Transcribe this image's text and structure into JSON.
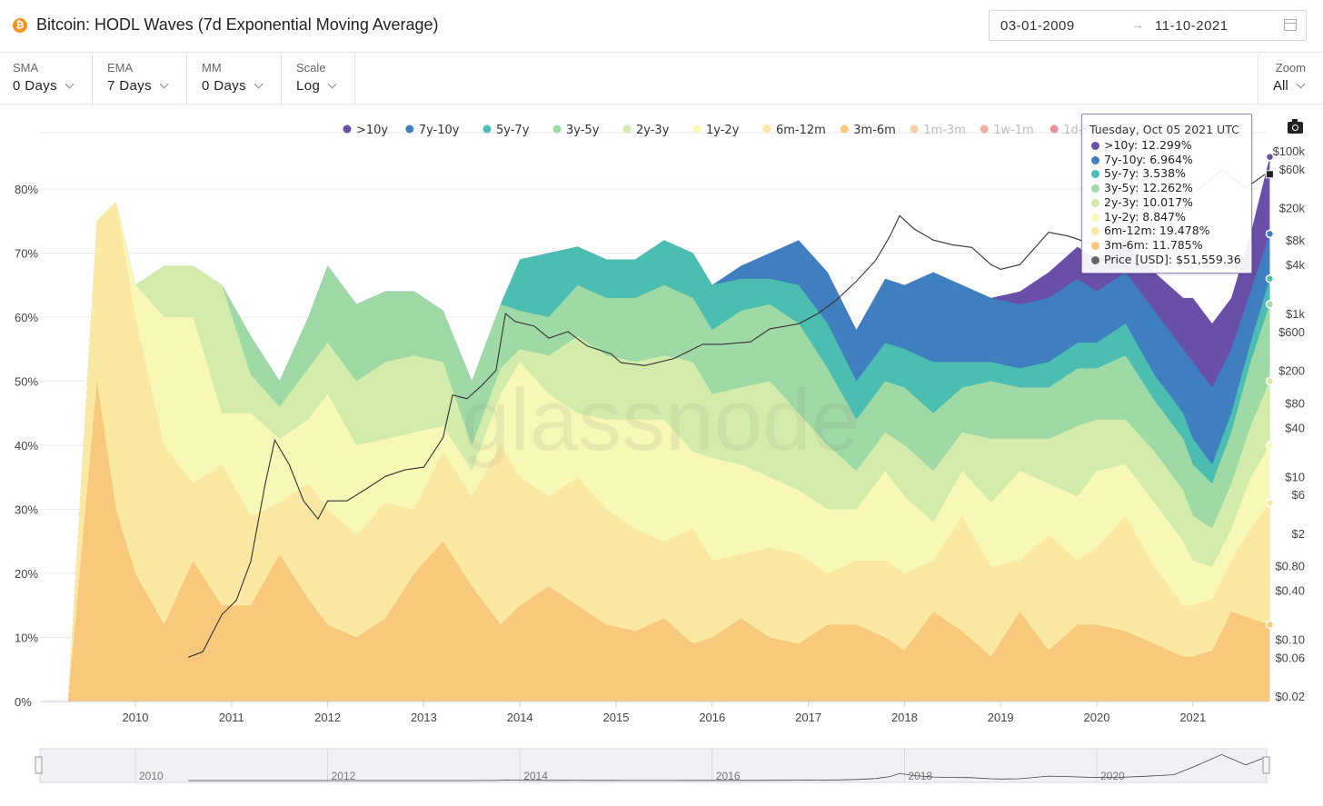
{
  "header": {
    "title": "Bitcoin: HODL Waves (7d Exponential Moving Average)",
    "date_start": "03-01-2009",
    "date_end": "11-10-2021",
    "arrow": "→"
  },
  "controls": [
    {
      "label": "SMA",
      "value": "0 Days"
    },
    {
      "label": "EMA",
      "value": "7 Days"
    },
    {
      "label": "MM",
      "value": "0 Days"
    },
    {
      "label": "Scale",
      "value": "Log"
    }
  ],
  "zoom": {
    "label": "Zoom",
    "value": "All"
  },
  "watermark": "glassnode",
  "legend": [
    {
      "name": ">10y",
      "color": "#6a4fa8",
      "enabled": true
    },
    {
      "name": "7y-10y",
      "color": "#3f7fc0",
      "enabled": true
    },
    {
      "name": "5y-7y",
      "color": "#4bbdb1",
      "enabled": true
    },
    {
      "name": "3y-5y",
      "color": "#9fd9a5",
      "enabled": true
    },
    {
      "name": "2y-3y",
      "color": "#d4ecab",
      "enabled": true
    },
    {
      "name": "1y-2y",
      "color": "#f7f7b6",
      "enabled": true
    },
    {
      "name": "6m-12m",
      "color": "#fbe9a3",
      "enabled": true
    },
    {
      "name": "3m-6m",
      "color": "#f8c97d",
      "enabled": true
    },
    {
      "name": "1m-3m",
      "color": "#f29a5c",
      "enabled": false
    },
    {
      "name": "1w-1m",
      "color": "#e4623f",
      "enabled": false
    },
    {
      "name": "1d-1w",
      "color": "#c92a34",
      "enabled": false
    }
  ],
  "tooltip": {
    "header": "Tuesday, Oct 05 2021 UTC",
    "rows": [
      {
        "label": ">10y",
        "value": "12.299%",
        "color": "#6a4fa8"
      },
      {
        "label": "7y-10y",
        "value": "6.964%",
        "color": "#3f7fc0"
      },
      {
        "label": "5y-7y",
        "value": "3.538%",
        "color": "#4bbdb1"
      },
      {
        "label": "3y-5y",
        "value": "12.262%",
        "color": "#9fd9a5"
      },
      {
        "label": "2y-3y",
        "value": "10.017%",
        "color": "#d4ecab"
      },
      {
        "label": "1y-2y",
        "value": "8.847%",
        "color": "#f7f7b6"
      },
      {
        "label": "6m-12m",
        "value": "19.478%",
        "color": "#fbe9a3"
      },
      {
        "label": "3m-6m",
        "value": "11.785%",
        "color": "#f8c97d"
      },
      {
        "label": "Price [USD]",
        "value": "$51,559.36",
        "color": "#666666"
      }
    ]
  },
  "chart_data": {
    "type": "area",
    "stacked": true,
    "title": "Bitcoin: HODL Waves (7d Exponential Moving Average)",
    "x": [
      2009.3,
      2009.6,
      2009.8,
      2010.0,
      2010.3,
      2010.6,
      2010.9,
      2011.2,
      2011.5,
      2011.8,
      2012.0,
      2012.3,
      2012.6,
      2012.9,
      2013.2,
      2013.5,
      2013.8,
      2014.0,
      2014.3,
      2014.6,
      2014.9,
      2015.2,
      2015.5,
      2015.8,
      2016.0,
      2016.3,
      2016.6,
      2016.9,
      2017.2,
      2017.5,
      2017.8,
      2018.0,
      2018.3,
      2018.6,
      2018.9,
      2019.2,
      2019.5,
      2019.8,
      2020.0,
      2020.3,
      2020.6,
      2020.9,
      2021.0,
      2021.2,
      2021.4,
      2021.6,
      2021.8
    ],
    "series": [
      {
        "name": "3m-6m",
        "values": [
          0,
          50,
          30,
          20,
          12,
          22,
          15,
          15,
          23,
          16,
          12,
          10,
          13,
          20,
          25,
          18,
          12,
          15,
          18,
          15,
          12,
          11,
          13,
          9,
          10,
          13,
          10,
          9,
          12,
          12,
          10,
          8,
          14,
          11,
          7,
          14,
          8,
          12,
          12,
          11,
          9,
          7,
          7,
          8,
          14,
          13,
          12
        ]
      },
      {
        "name": "6m-12m",
        "values": [
          0,
          25,
          48,
          40,
          28,
          12,
          22,
          14,
          8,
          18,
          18,
          16,
          18,
          10,
          14,
          14,
          28,
          20,
          14,
          20,
          18,
          16,
          12,
          18,
          12,
          10,
          14,
          14,
          8,
          10,
          12,
          12,
          8,
          18,
          14,
          8,
          18,
          10,
          12,
          18,
          12,
          8,
          8,
          8,
          8,
          14,
          19
        ]
      },
      {
        "name": "1y-2y",
        "values": [
          0,
          0,
          0,
          5,
          20,
          26,
          8,
          16,
          10,
          10,
          18,
          14,
          10,
          12,
          4,
          4,
          8,
          18,
          16,
          10,
          14,
          17,
          19,
          12,
          16,
          14,
          11,
          10,
          10,
          8,
          14,
          12,
          6,
          7,
          10,
          14,
          8,
          10,
          12,
          8,
          10,
          10,
          7,
          5,
          5,
          8,
          9
        ]
      },
      {
        "name": "2y-3y",
        "values": [
          0,
          0,
          0,
          0,
          8,
          8,
          20,
          6,
          5,
          8,
          8,
          10,
          12,
          12,
          10,
          4,
          4,
          2,
          6,
          12,
          10,
          9,
          10,
          14,
          10,
          12,
          15,
          12,
          10,
          6,
          6,
          8,
          8,
          6,
          10,
          5,
          7,
          11,
          8,
          7,
          8,
          8,
          7,
          6,
          7,
          8,
          10
        ]
      },
      {
        "name": "3y-5y",
        "values": [
          0,
          0,
          0,
          0,
          0,
          0,
          0,
          6,
          4,
          8,
          12,
          12,
          11,
          10,
          8,
          10,
          10,
          6,
          6,
          8,
          9,
          10,
          11,
          10,
          10,
          12,
          12,
          14,
          12,
          8,
          8,
          9,
          9,
          7,
          9,
          8,
          8,
          9,
          8,
          10,
          8,
          8,
          8,
          7,
          8,
          10,
          12
        ]
      },
      {
        "name": "5y-7y",
        "values": [
          0,
          0,
          0,
          0,
          0,
          0,
          0,
          0,
          0,
          0,
          0,
          0,
          0,
          0,
          0,
          0,
          0,
          8,
          10,
          6,
          6,
          6,
          7,
          7,
          7,
          5,
          4,
          6,
          7,
          6,
          6,
          6,
          8,
          4,
          3,
          3,
          4,
          4,
          4,
          5,
          4,
          4,
          4,
          3,
          3,
          3,
          4
        ]
      },
      {
        "name": "7y-10y",
        "values": [
          0,
          0,
          0,
          0,
          0,
          0,
          0,
          0,
          0,
          0,
          0,
          0,
          0,
          0,
          0,
          0,
          0,
          0,
          0,
          0,
          0,
          0,
          0,
          0,
          0,
          2,
          4,
          7,
          8,
          8,
          10,
          10,
          14,
          12,
          10,
          10,
          10,
          10,
          8,
          8,
          10,
          10,
          12,
          12,
          10,
          8,
          7
        ]
      },
      {
        "name": ">10y",
        "values": [
          0,
          0,
          0,
          0,
          0,
          0,
          0,
          0,
          0,
          0,
          0,
          0,
          0,
          0,
          0,
          0,
          0,
          0,
          0,
          0,
          0,
          0,
          0,
          0,
          0,
          0,
          0,
          0,
          0,
          0,
          0,
          0,
          0,
          0,
          0,
          2,
          4,
          5,
          5,
          5,
          6,
          8,
          10,
          10,
          8,
          9,
          12
        ]
      }
    ],
    "price": {
      "name": "Price [USD]",
      "x": [
        2010.55,
        2010.7,
        2010.9,
        2011.05,
        2011.2,
        2011.35,
        2011.45,
        2011.6,
        2011.75,
        2011.9,
        2012.0,
        2012.2,
        2012.4,
        2012.6,
        2012.8,
        2013.0,
        2013.2,
        2013.3,
        2013.45,
        2013.6,
        2013.75,
        2013.85,
        2013.95,
        2014.15,
        2014.3,
        2014.5,
        2014.7,
        2014.95,
        2015.05,
        2015.3,
        2015.6,
        2015.9,
        2016.1,
        2016.4,
        2016.6,
        2016.9,
        2017.1,
        2017.3,
        2017.5,
        2017.7,
        2017.85,
        2017.95,
        2018.1,
        2018.3,
        2018.5,
        2018.7,
        2018.9,
        2019.0,
        2019.2,
        2019.5,
        2019.7,
        2019.9,
        2020.2,
        2020.5,
        2020.8,
        2021.0,
        2021.3,
        2021.55,
        2021.75
      ],
      "values": [
        0.06,
        0.07,
        0.2,
        0.3,
        0.9,
        8,
        28,
        14,
        5,
        3,
        5,
        5,
        7,
        10,
        12,
        13,
        30,
        100,
        90,
        130,
        200,
        1000,
        800,
        700,
        500,
        600,
        400,
        320,
        250,
        230,
        280,
        420,
        420,
        450,
        650,
        750,
        1000,
        1500,
        2500,
        4500,
        9000,
        16000,
        11000,
        8000,
        7000,
        6500,
        4000,
        3500,
        4000,
        10000,
        9000,
        7500,
        7000,
        9500,
        13000,
        30000,
        58000,
        35000,
        51559.36
      ]
    },
    "ylabel_left": "",
    "ylabel_right": "",
    "ylim": [
      0,
      86
    ],
    "yticks_left": [
      "80%",
      "70%",
      "60%",
      "50%",
      "40%",
      "30%",
      "20%",
      "10%",
      "0%"
    ],
    "yticks_left_values": [
      80,
      70,
      60,
      50,
      40,
      30,
      20,
      10,
      0
    ],
    "yticks_right": [
      "$100k",
      "$60k",
      "$20k",
      "$8k",
      "$4k",
      "$1k",
      "$600",
      "$200",
      "$80",
      "$40",
      "$10",
      "$6",
      "$2",
      "$0.80",
      "$0.40",
      "$0.10",
      "$0.06",
      "$0.02"
    ],
    "yticks_right_values": [
      100000,
      60000,
      20000,
      8000,
      4000,
      1000,
      600,
      200,
      80,
      40,
      10,
      6,
      2,
      0.8,
      0.4,
      0.1,
      0.06,
      0.02
    ],
    "xticks": [
      "2010",
      "2011",
      "2012",
      "2013",
      "2014",
      "2015",
      "2016",
      "2017",
      "2018",
      "2019",
      "2020",
      "2021"
    ],
    "xticks_values": [
      2010,
      2011,
      2012,
      2013,
      2014,
      2015,
      2016,
      2017,
      2018,
      2019,
      2020,
      2021
    ],
    "navigator_ticks": [
      "2010",
      "2012",
      "2014",
      "2016",
      "2018",
      "2020"
    ],
    "navigator_ticks_values": [
      2010,
      2012,
      2014,
      2016,
      2018,
      2020
    ],
    "legend_position": "top",
    "grid": true,
    "scale": "log"
  }
}
